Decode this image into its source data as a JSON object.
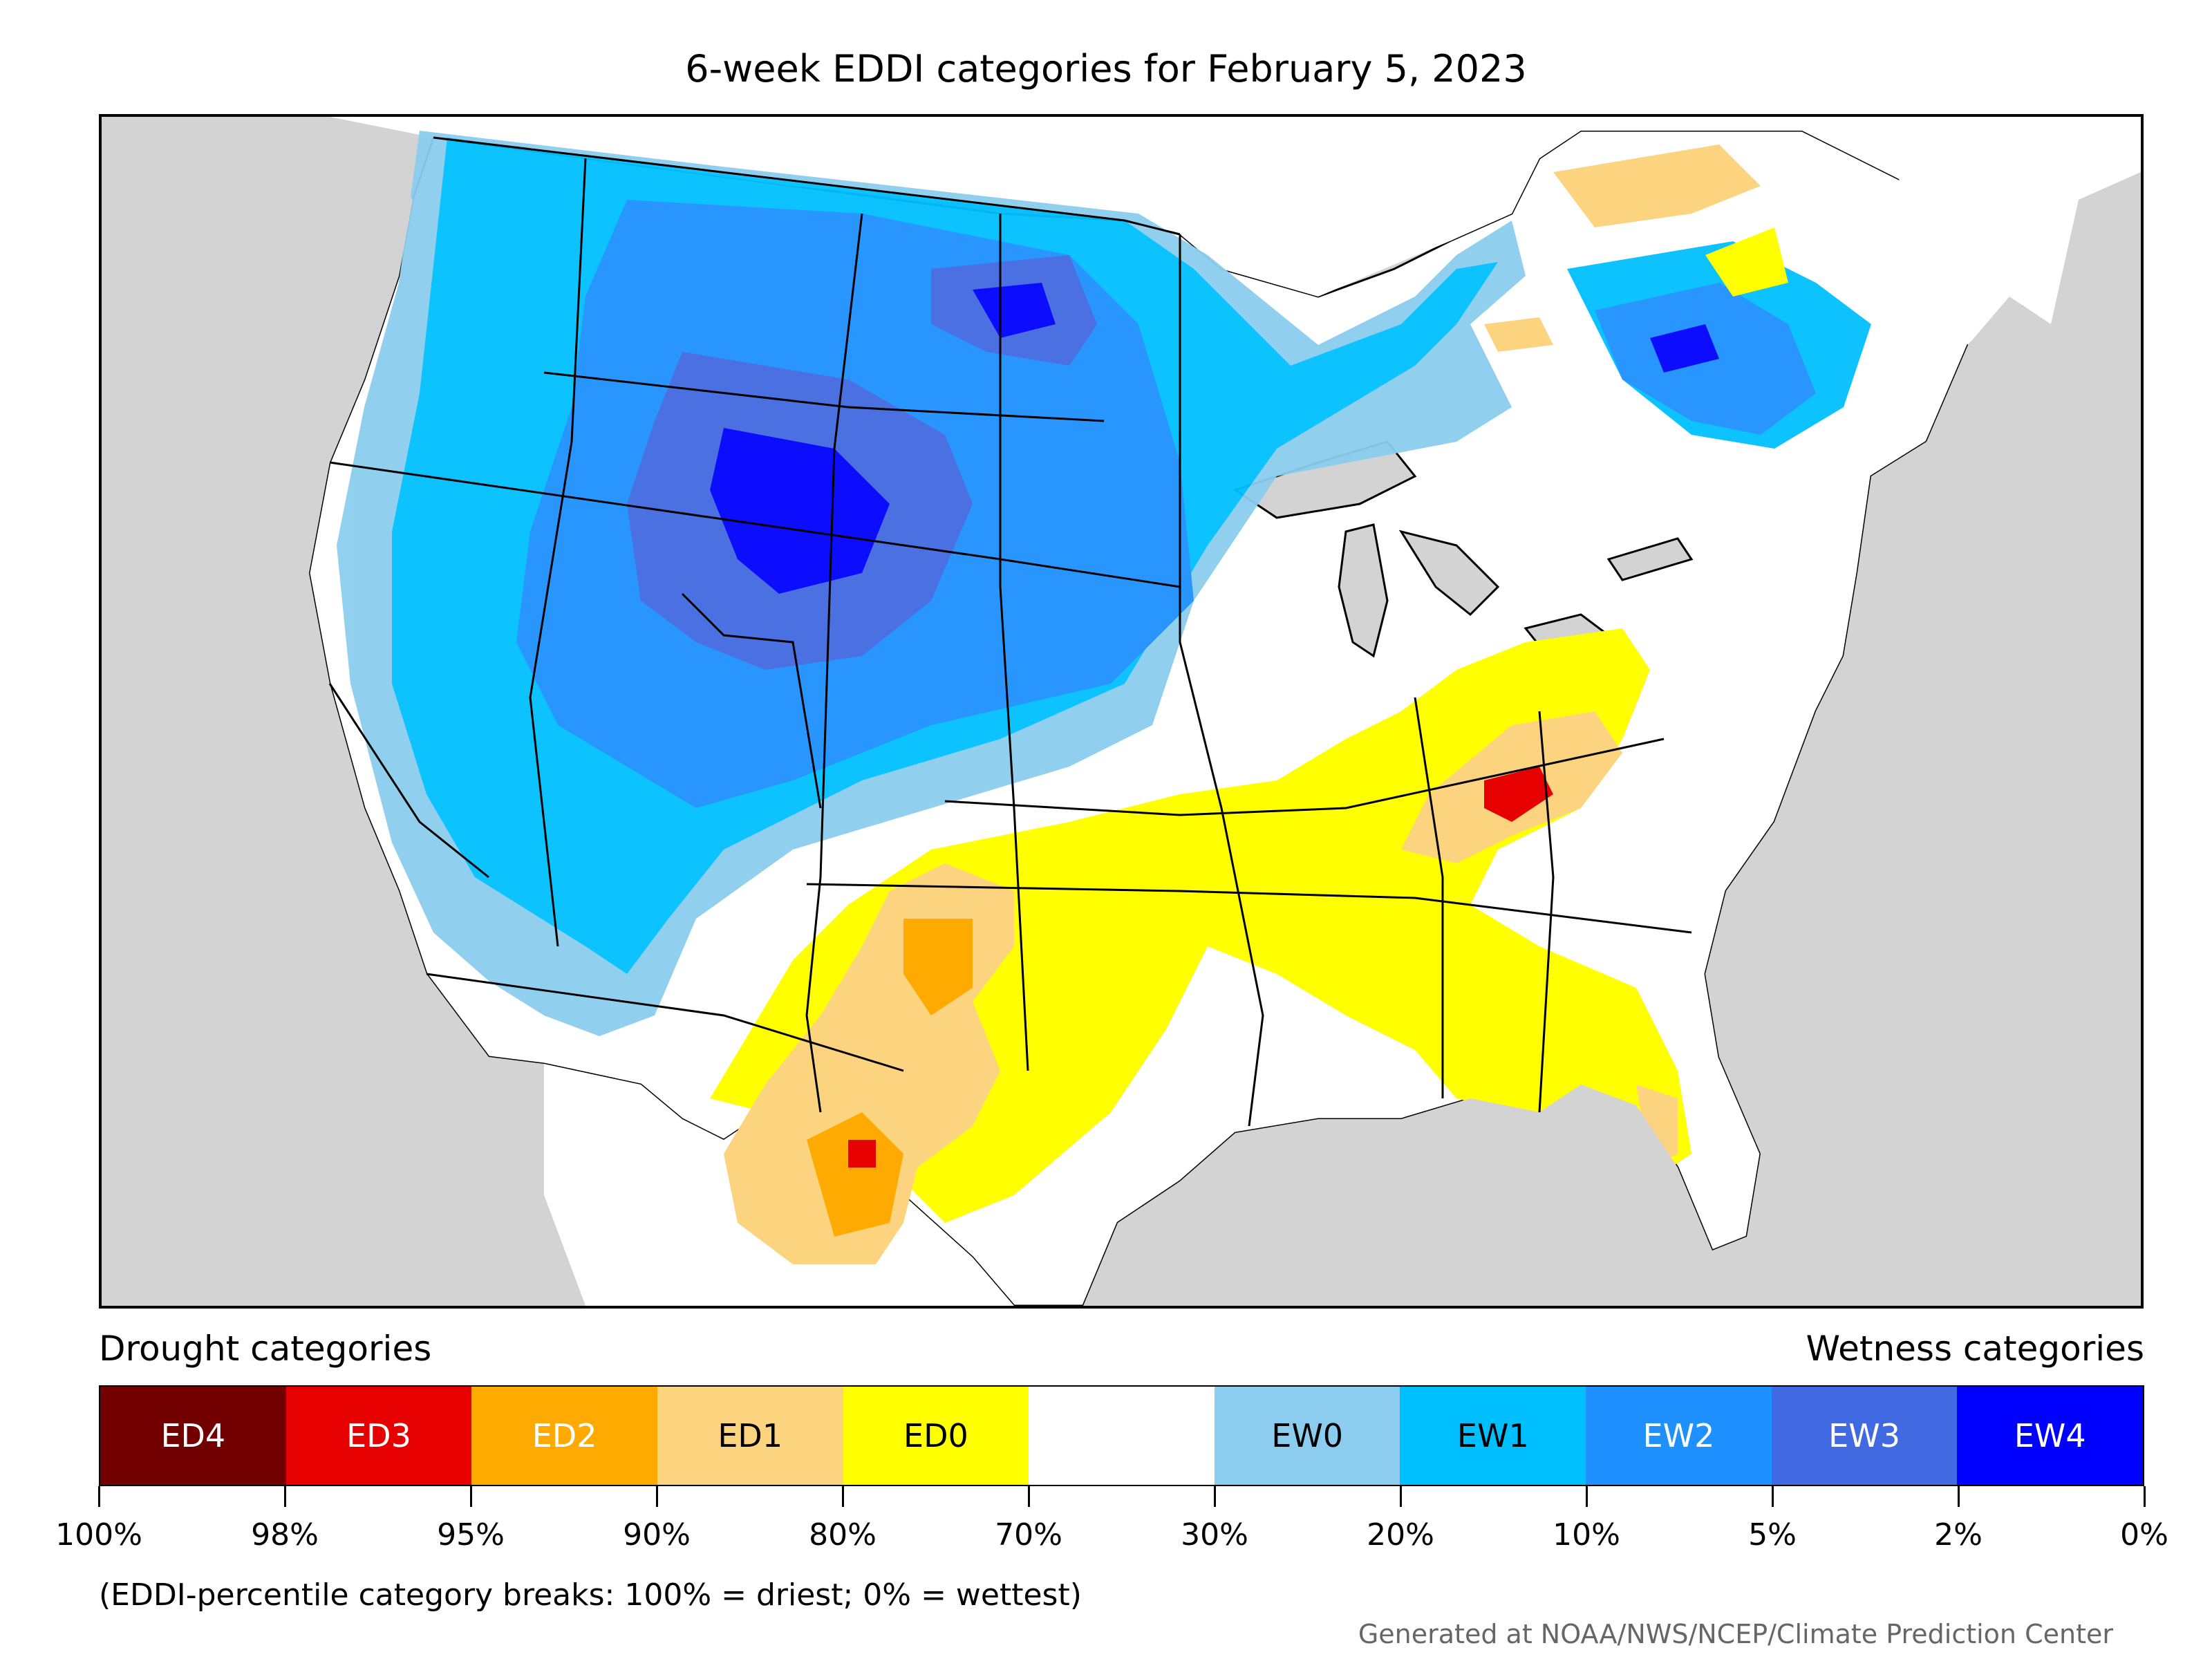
{
  "title": "6-week EDDI categories for February 5, 2023",
  "drought_heading": "Drought categories",
  "wetness_heading": "Wetness categories",
  "categories": [
    {
      "label": "ED4",
      "color": "#730000",
      "text_color": "#ffffff"
    },
    {
      "label": "ED3",
      "color": "#e60000",
      "text_color": "#ffffff"
    },
    {
      "label": "ED2",
      "color": "#ffaa00",
      "text_color": "#ffffff"
    },
    {
      "label": "ED1",
      "color": "#fcd37f",
      "text_color": "#000000"
    },
    {
      "label": "ED0",
      "color": "#ffff00",
      "text_color": "#000000"
    },
    {
      "label": "",
      "color": "#ffffff",
      "text_color": "#000000"
    },
    {
      "label": "EW0",
      "color": "#8ccdef",
      "text_color": "#000000"
    },
    {
      "label": "EW1",
      "color": "#00bfff",
      "text_color": "#000000"
    },
    {
      "label": "EW2",
      "color": "#1e90ff",
      "text_color": "#ffffff"
    },
    {
      "label": "EW3",
      "color": "#4169e1",
      "text_color": "#ffffff"
    },
    {
      "label": "EW4",
      "color": "#0000ff",
      "text_color": "#ffffff"
    }
  ],
  "tick_labels": [
    "100%",
    "98%",
    "95%",
    "90%",
    "80%",
    "70%",
    "30%",
    "20%",
    "10%",
    "5%",
    "2%",
    "0%"
  ],
  "footnote": "(EDDI-percentile category breaks: 100% = driest; 0% = wettest)",
  "credit": "Generated at NOAA/NWS/NCEP/Climate Prediction Center"
}
